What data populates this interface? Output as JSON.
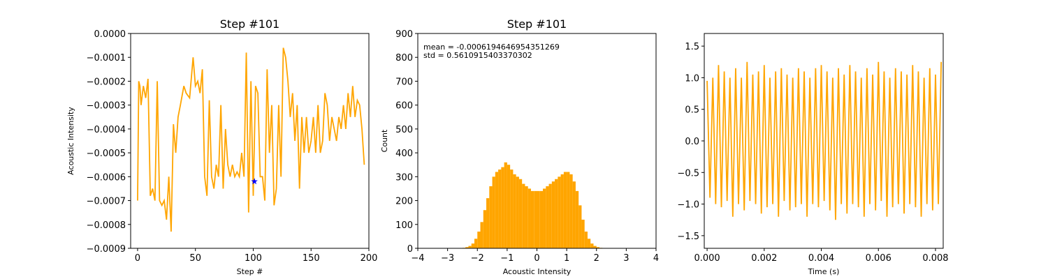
{
  "chart_data": [
    {
      "type": "line",
      "title": "Step #101",
      "xlabel": "Step #",
      "ylabel": "Acoustic Intensity",
      "color": "#ffa500",
      "x": [
        0,
        1,
        2,
        3,
        5,
        7,
        9,
        11,
        13,
        15,
        17,
        19,
        21,
        23,
        25,
        27,
        29,
        31,
        33,
        35,
        37,
        40,
        42,
        45,
        48,
        50,
        52,
        54,
        56,
        58,
        60,
        62,
        64,
        66,
        68,
        70,
        72,
        74,
        76,
        78,
        80,
        82,
        84,
        86,
        88,
        90,
        92,
        94,
        96,
        98,
        100,
        102,
        104,
        106,
        108,
        110,
        112,
        114,
        116,
        118,
        120,
        122,
        124,
        126,
        128,
        130,
        132,
        134,
        136,
        138,
        140,
        142,
        144,
        146,
        148,
        150,
        152,
        154,
        156,
        158,
        160,
        162,
        164,
        166,
        168,
        170,
        172,
        174,
        176,
        178,
        180,
        182,
        184,
        186,
        188,
        190,
        192,
        194,
        196
      ],
      "values": [
        -0.0007,
        -0.0002,
        -0.00022,
        -0.0003,
        -0.00022,
        -0.00027,
        -0.00019,
        -0.00068,
        -0.00065,
        -0.0007,
        -0.0002,
        -0.0007,
        -0.00072,
        -0.0007,
        -0.00078,
        -0.0006,
        -0.00083,
        -0.00038,
        -0.0005,
        -0.00035,
        -0.0003,
        -0.00022,
        -0.00025,
        -0.00027,
        -0.0001,
        -0.00022,
        -0.0002,
        -0.00025,
        -0.00015,
        -0.0006,
        -0.00068,
        -0.00028,
        -0.0006,
        -0.00065,
        -0.00055,
        -0.0006,
        -0.0003,
        -0.00065,
        -0.0004,
        -0.00055,
        -0.0006,
        -0.00055,
        -0.0006,
        -0.00058,
        -0.0006,
        -0.0005,
        -0.0006,
        -8e-05,
        -0.00075,
        -0.0002,
        -0.00068,
        -0.00022,
        -0.00025,
        -0.0006,
        -0.0006,
        -0.0007,
        -0.00015,
        -0.0005,
        -0.0003,
        -0.00072,
        -0.00065,
        -0.0003,
        -0.0006,
        -6e-05,
        -0.0001,
        -0.0002,
        -0.00035,
        -0.00025,
        -0.00045,
        -0.0003,
        -0.00065,
        -0.00035,
        -0.0005,
        -0.00035,
        -0.0005,
        -0.00045,
        -0.00035,
        -0.0005,
        -0.0003,
        -0.0005,
        -0.00045,
        -0.00025,
        -0.0003,
        -0.00045,
        -0.00035,
        -0.0004,
        -0.00045,
        -0.00035,
        -0.0004,
        -0.0003,
        -0.0004,
        -0.00025,
        -0.00035,
        -0.00022,
        -0.00035,
        -0.00028,
        -0.0003,
        -0.0004,
        -0.00055
      ],
      "highlight": {
        "x": 101,
        "y": -0.00062,
        "color": "#0000ff"
      },
      "xlim": [
        -6,
        200
      ],
      "xticks": [
        0,
        50,
        100,
        150,
        200
      ],
      "ylim": [
        -0.0009,
        0
      ],
      "yticks": [
        {
          "value": -0.0009,
          "label": "−0.0009"
        },
        {
          "value": -0.0008,
          "label": "−0.0008"
        },
        {
          "value": -0.0007,
          "label": "−0.0007"
        },
        {
          "value": -0.0006,
          "label": "−0.0006"
        },
        {
          "value": -0.0005,
          "label": "−0.0005"
        },
        {
          "value": -0.0004,
          "label": "−0.0004"
        },
        {
          "value": -0.0003,
          "label": "−0.0003"
        },
        {
          "value": -0.0002,
          "label": "−0.0002"
        },
        {
          "value": -0.0001,
          "label": "−0.0001"
        },
        {
          "value": 0,
          "label": "0.0000"
        }
      ]
    },
    {
      "type": "histogram",
      "title": "Step #101",
      "xlabel": "Acoustic Intensity",
      "ylabel": "Count",
      "color": "#ffa500",
      "annotations": [
        "mean = -0.0006194646954351269",
        "std = 0.5610915403370302"
      ],
      "bins": [
        -2.5,
        -2.4,
        -2.3,
        -2.2,
        -2.1,
        -2.0,
        -1.9,
        -1.8,
        -1.7,
        -1.6,
        -1.5,
        -1.4,
        -1.3,
        -1.2,
        -1.1,
        -1.0,
        -0.9,
        -0.8,
        -0.7,
        -0.6,
        -0.5,
        -0.4,
        -0.3,
        -0.2,
        -0.1,
        0,
        0.1,
        0.2,
        0.3,
        0.4,
        0.5,
        0.6,
        0.7,
        0.8,
        0.9,
        1.0,
        1.1,
        1.2,
        1.3,
        1.4,
        1.5,
        1.6,
        1.7,
        1.8,
        1.9,
        2.0,
        2.1,
        2.2,
        2.3,
        2.4,
        2.5
      ],
      "values": [
        2,
        5,
        10,
        20,
        40,
        70,
        110,
        160,
        210,
        260,
        300,
        320,
        330,
        340,
        360,
        350,
        330,
        310,
        300,
        290,
        270,
        260,
        250,
        240,
        240,
        240,
        240,
        250,
        260,
        270,
        280,
        290,
        300,
        310,
        320,
        320,
        310,
        280,
        240,
        180,
        120,
        70,
        40,
        20,
        10,
        5,
        2,
        1,
        1,
        0
      ],
      "xlim": [
        -4,
        4
      ],
      "xticks": [
        {
          "value": -4,
          "label": "−4"
        },
        {
          "value": -3,
          "label": "−3"
        },
        {
          "value": -2,
          "label": "−2"
        },
        {
          "value": -1,
          "label": "−1"
        },
        0,
        1,
        2,
        3,
        4
      ],
      "ylim": [
        0,
        900
      ],
      "yticks": [
        0,
        100,
        200,
        300,
        400,
        500,
        600,
        700,
        800,
        900
      ]
    },
    {
      "type": "line",
      "xlabel": "Time (s)",
      "color": "#ffa500",
      "x": [
        0,
        0.0001,
        0.0002,
        0.0003,
        0.0004,
        0.0005,
        0.0006,
        0.0007,
        0.0008,
        0.0009,
        0.001,
        0.0011,
        0.0012,
        0.0013,
        0.0014,
        0.0015,
        0.0016,
        0.0017,
        0.0018,
        0.0019,
        0.002,
        0.0021,
        0.0022,
        0.0023,
        0.0024,
        0.0025,
        0.0026,
        0.0027,
        0.0028,
        0.0029,
        0.003,
        0.0031,
        0.0032,
        0.0033,
        0.0034,
        0.0035,
        0.0036,
        0.0037,
        0.0038,
        0.0039,
        0.004,
        0.0041,
        0.0042,
        0.0043,
        0.0044,
        0.0045,
        0.0046,
        0.0047,
        0.0048,
        0.0049,
        0.005,
        0.0051,
        0.0052,
        0.0053,
        0.0054,
        0.0055,
        0.0056,
        0.0057,
        0.0058,
        0.0059,
        0.006,
        0.0061,
        0.0062,
        0.0063,
        0.0064,
        0.0065,
        0.0066,
        0.0067,
        0.0068,
        0.0069,
        0.007,
        0.0071,
        0.0072,
        0.0073,
        0.0074,
        0.0075,
        0.0076,
        0.0077,
        0.0078,
        0.0079,
        0.008,
        0.0081,
        0.0082
      ],
      "values": [
        0.95,
        -0.9,
        1.0,
        -1.0,
        1.2,
        -1.05,
        1.1,
        -0.95,
        1.0,
        -1.2,
        1.15,
        -1.0,
        1.0,
        -1.1,
        1.25,
        -0.95,
        1.05,
        -1.0,
        1.1,
        -1.15,
        1.2,
        -1.05,
        1.0,
        -1.0,
        1.1,
        -1.2,
        1.15,
        -0.95,
        1.05,
        -1.1,
        1.0,
        -1.05,
        1.15,
        -1.0,
        1.1,
        -1.2,
        1.0,
        -1.0,
        1.15,
        -1.05,
        1.2,
        -0.95,
        1.1,
        -1.1,
        1.0,
        -1.25,
        1.15,
        -1.0,
        1.05,
        -1.15,
        1.2,
        -1.0,
        1.1,
        -1.05,
        1.0,
        -1.2,
        1.15,
        -1.0,
        1.05,
        -1.1,
        1.25,
        -0.95,
        1.1,
        -1.2,
        1.0,
        -1.05,
        1.15,
        -1.0,
        1.1,
        -1.15,
        1.05,
        -1.0,
        1.2,
        -1.05,
        1.1,
        -1.2,
        1.0,
        -1.0,
        1.15,
        -1.1,
        1.05,
        -1.0,
        1.25
      ],
      "xlim": [
        -0.0001,
        0.00827
      ],
      "xticks": [
        {
          "value": 0,
          "label": "0.000"
        },
        {
          "value": 0.002,
          "label": "0.002"
        },
        {
          "value": 0.004,
          "label": "0.004"
        },
        {
          "value": 0.006,
          "label": "0.006"
        },
        {
          "value": 0.008,
          "label": "0.008"
        }
      ],
      "ylim": [
        -1.7,
        1.7
      ],
      "yticks": [
        {
          "value": -1.5,
          "label": "−1.5"
        },
        {
          "value": -1,
          "label": "−1.0"
        },
        {
          "value": -0.5,
          "label": "−0.5"
        },
        {
          "value": 0,
          "label": "0.0"
        },
        {
          "value": 0.5,
          "label": "0.5"
        },
        {
          "value": 1,
          "label": "1.0"
        },
        1.5
      ]
    }
  ]
}
